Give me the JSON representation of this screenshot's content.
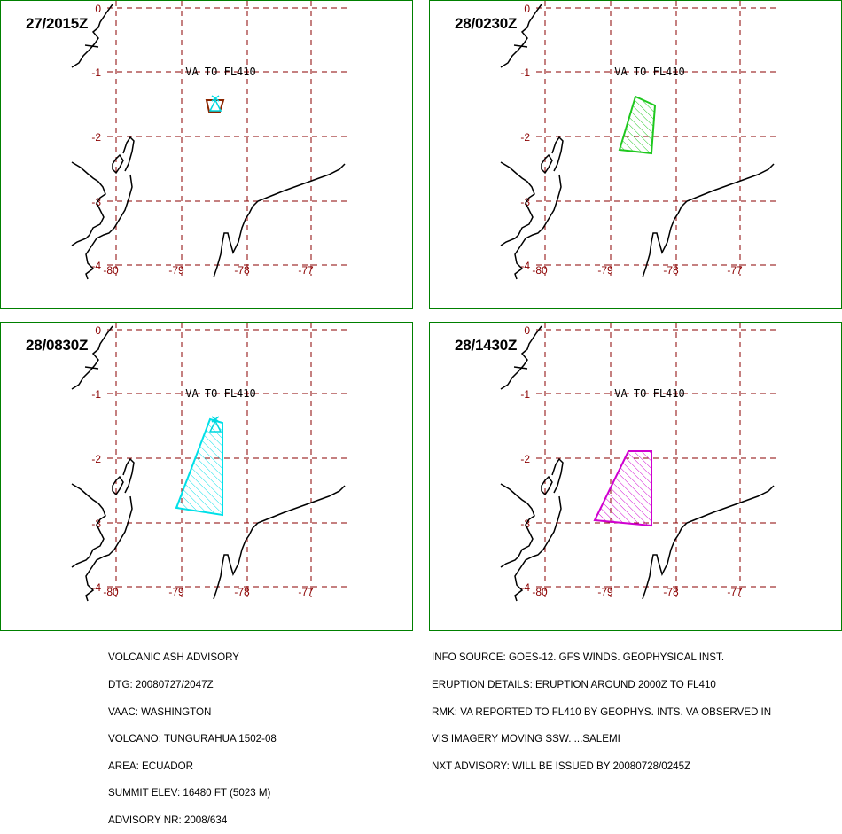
{
  "colors": {
    "frame": "#008000",
    "grid": "#8b0000",
    "coast": "#000000",
    "volcano": "#00d8e0",
    "forecast_0": "#8b2500",
    "forecast_6": "#1ec81e",
    "forecast_12": "#00e0e8",
    "forecast_18": "#d000d0"
  },
  "grid_labels": {
    "lat": [
      "0",
      "-1",
      "-2",
      "-3",
      "-4"
    ],
    "lon": [
      "-80",
      "-79",
      "-78",
      "-77"
    ]
  },
  "panels": [
    {
      "time": "27/2015Z",
      "label": "VA TO FL410",
      "polygon_color_name": "forecast_0"
    },
    {
      "time": "28/0230Z",
      "label": "VA TO FL410",
      "polygon_color_name": "forecast_6"
    },
    {
      "time": "28/0830Z",
      "label": "VA TO FL410",
      "polygon_color_name": "forecast_12"
    },
    {
      "time": "28/1430Z",
      "label": "VA TO FL410",
      "polygon_color_name": "forecast_18"
    }
  ],
  "advisory_left": [
    "VOLCANIC ASH ADVISORY",
    "DTG: 20080727/2047Z",
    "VAAC: WASHINGTON",
    "VOLCANO: TUNGURAHUA 1502-08",
    "AREA: ECUADOR",
    "SUMMIT ELEV: 16480 FT (5023 M)",
    "ADVISORY NR: 2008/634"
  ],
  "advisory_right": [
    "INFO SOURCE: GOES-12. GFS WINDS. GEOPHYSICAL INST.",
    "ERUPTION DETAILS: ERUPTION AROUND 2000Z TO FL410",
    "RMK: VA REPORTED TO FL410 BY GEOPHYS. INTS. VA OBSERVED IN",
    "VIS IMAGERY MOVING SSW. ...SALEMI",
    "NXT ADVISORY: WILL BE ISSUED BY 20080728/0245Z"
  ]
}
